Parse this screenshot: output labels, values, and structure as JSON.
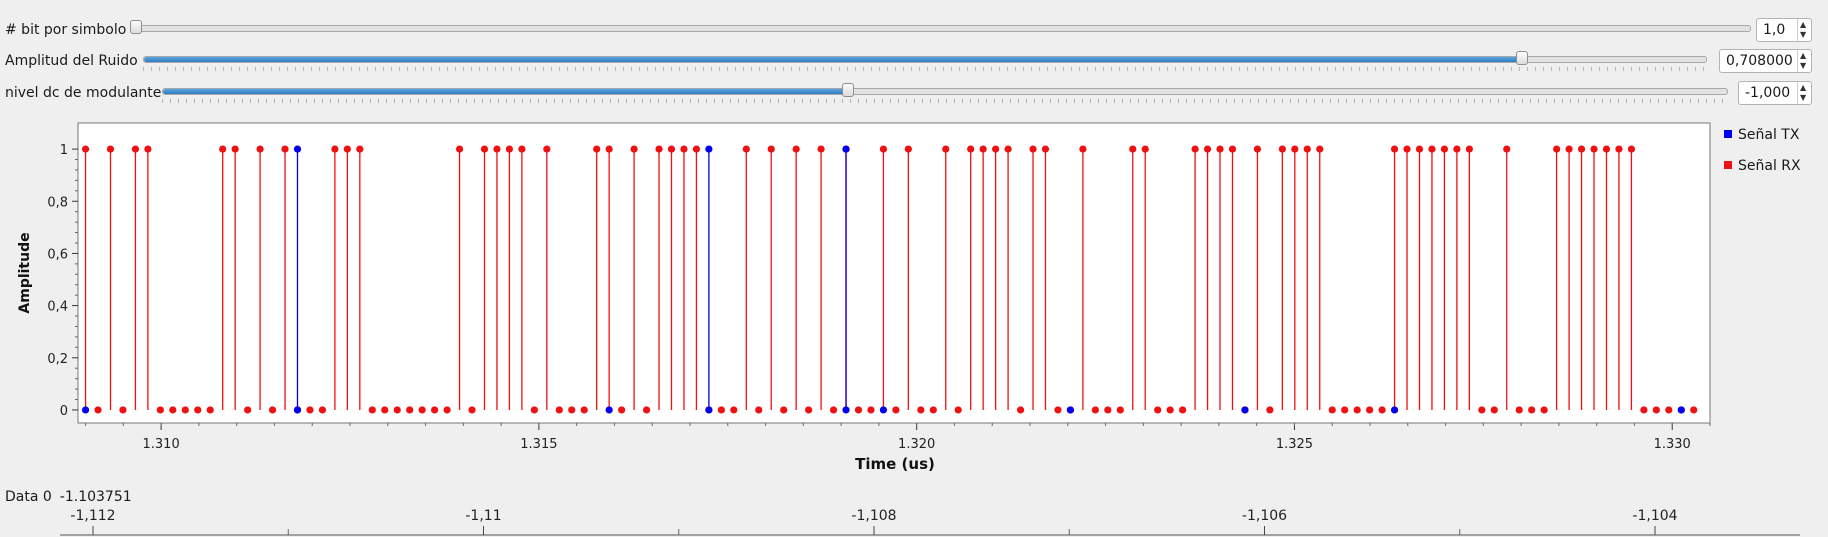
{
  "controls": [
    {
      "label": "# bit por simbolo",
      "value": "1,0",
      "fraction": 0.0
    },
    {
      "label": "Amplitud del Ruido",
      "value": "0,708000",
      "fraction": 0.8
    },
    {
      "label": "nivel dc de modulante",
      "value": "-1,000",
      "fraction": 0.44
    }
  ],
  "legend": [
    {
      "label": "Señal TX",
      "color": "#0000ee"
    },
    {
      "label": "Señal RX",
      "color": "#ee1111"
    }
  ],
  "chart_data": {
    "type": "stem",
    "xlabel": "Time (us)",
    "ylabel": "Amplitude",
    "xlim": [
      1.3089,
      1.3305
    ],
    "ylim": [
      -0.05,
      1.1
    ],
    "x_ticks": [
      "1.310",
      "1.315",
      "1.320",
      "1.325",
      "1.330"
    ],
    "y_ticks": [
      "0",
      "0,2",
      "0,4",
      "0,6",
      "0,8",
      "1"
    ],
    "x_start": 1.309,
    "x_step": 0.000165,
    "series": [
      {
        "name": "Señal TX",
        "color": "#0000ee",
        "ones": [
          17,
          50,
          61
        ],
        "zeros": [
          0,
          42,
          64,
          79,
          93,
          105,
          128
        ]
      },
      {
        "name": "Señal RX",
        "color": "#ee1111",
        "values": [
          1,
          0,
          1,
          0,
          1,
          1,
          0,
          0,
          0,
          0,
          0,
          1,
          1,
          0,
          1,
          0,
          1,
          0,
          0,
          0,
          1,
          1,
          1,
          0,
          0,
          0,
          0,
          0,
          0,
          0,
          1,
          0,
          1,
          1,
          1,
          1,
          0,
          1,
          0,
          0,
          0,
          1,
          1,
          0,
          1,
          0,
          1,
          1,
          1,
          1,
          0,
          0,
          0,
          1,
          0,
          1,
          0,
          1,
          0,
          1,
          0,
          1,
          0,
          0,
          1,
          0,
          1,
          0,
          0,
          1,
          0,
          1,
          1,
          1,
          1,
          0,
          1,
          1,
          0,
          0,
          1,
          0,
          0,
          0,
          1,
          1,
          0,
          0,
          0,
          1,
          1,
          1,
          1,
          0,
          1,
          0,
          1,
          1,
          1,
          1,
          0,
          0,
          0,
          0,
          0,
          1,
          1,
          1,
          1,
          1,
          1,
          1,
          0,
          0,
          1,
          0,
          0,
          0,
          1,
          1,
          1,
          1,
          1,
          1,
          1,
          0,
          0,
          0,
          0,
          0
        ]
      }
    ]
  },
  "data_readout": {
    "name": "Data 0",
    "value": "-1.103751"
  },
  "bottom_axis_ticks": [
    "-1,112",
    "-1,11",
    "-1,108",
    "-1,106",
    "-1,104"
  ]
}
